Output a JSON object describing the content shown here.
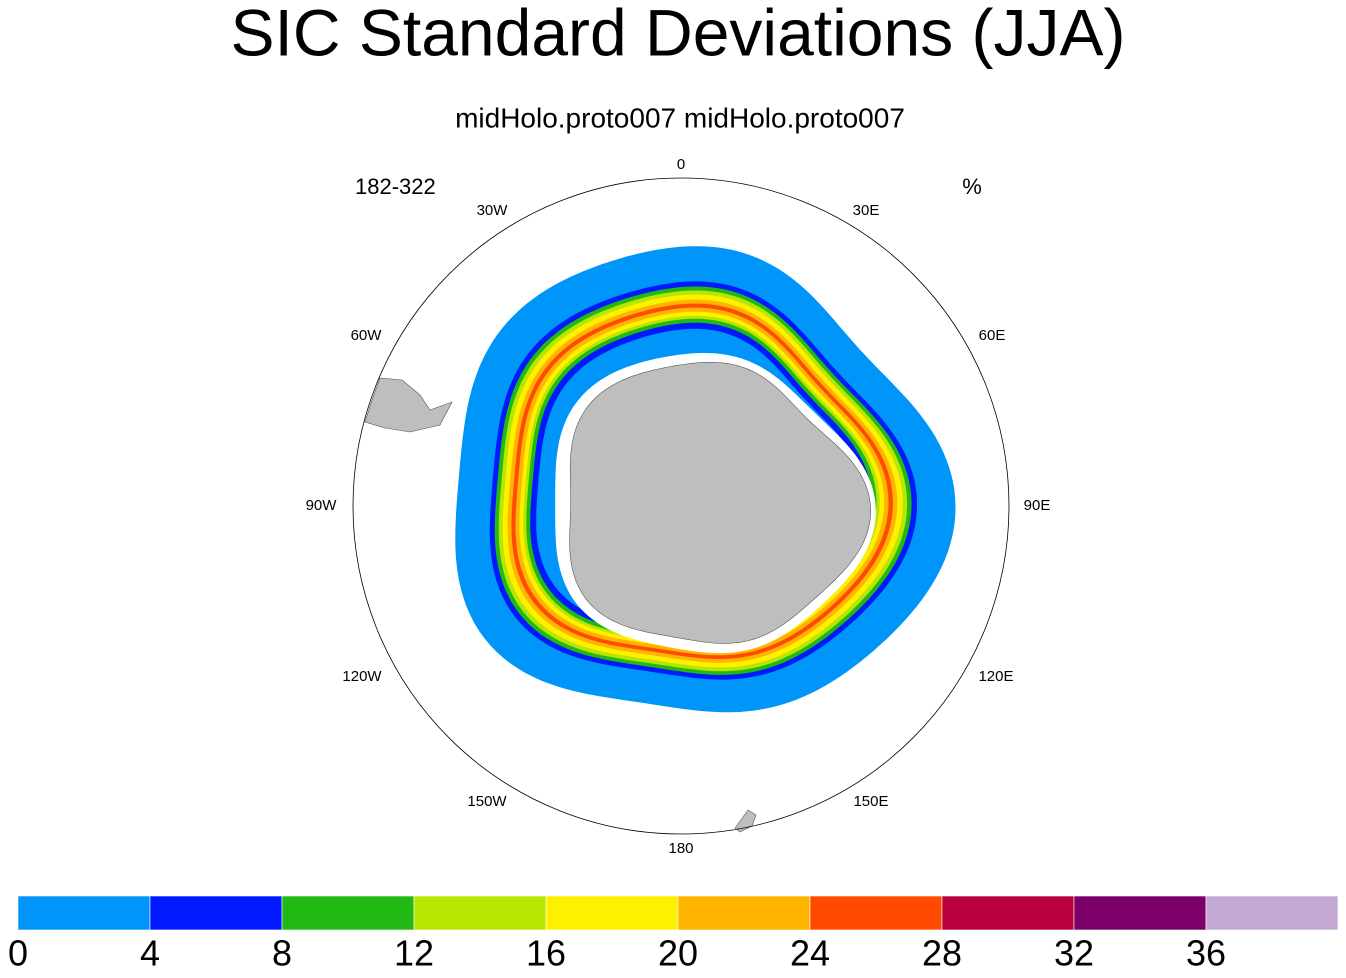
{
  "title": "SIC Standard Deviations (JJA)",
  "subtitle": "midHolo.proto007  midHolo.proto007",
  "left_label": "182-322",
  "right_label": "%",
  "lon_labels": [
    "0",
    "30E",
    "60E",
    "90E",
    "120E",
    "150E",
    "180",
    "150W",
    "120W",
    "90W",
    "60W",
    "30W"
  ],
  "colorbar": {
    "levels": [
      0,
      4,
      8,
      12,
      16,
      20,
      24,
      28,
      32,
      36
    ],
    "colors": [
      "#0096f9",
      "#0019ff",
      "#22b914",
      "#b8e600",
      "#fff000",
      "#ffb400",
      "#ff4b00",
      "#b8003c",
      "#7d006a",
      "#c4a8d4"
    ]
  }
}
